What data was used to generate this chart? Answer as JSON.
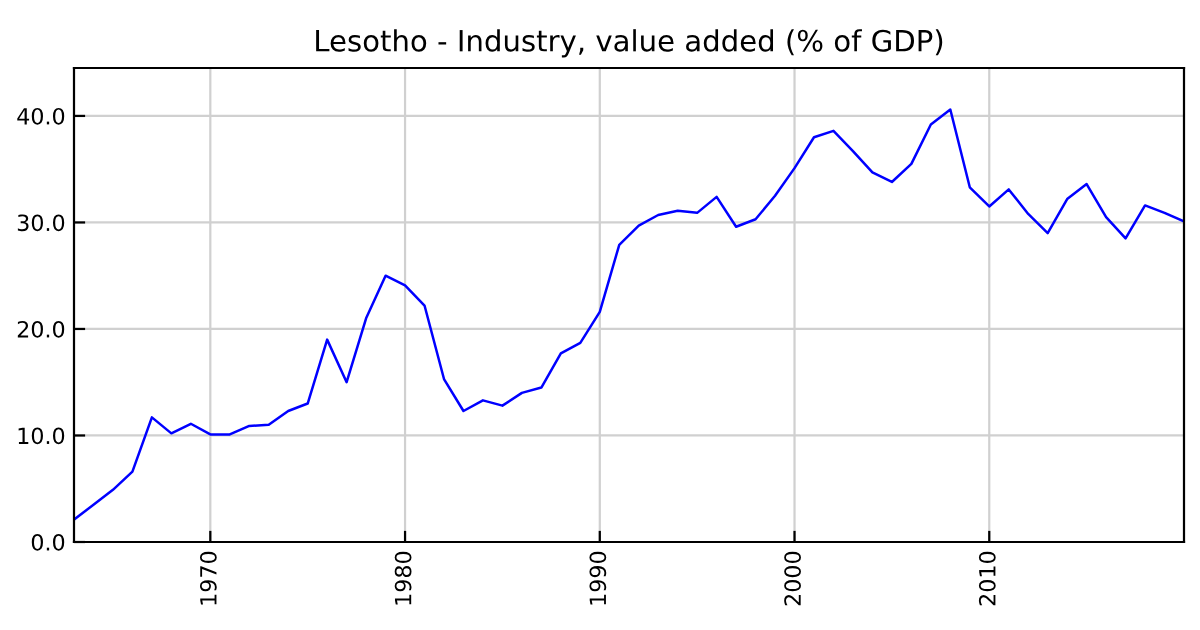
{
  "chart_data": {
    "type": "line",
    "title": "Lesotho - Industry, value added (% of GDP)",
    "x": [
      1963,
      1964,
      1965,
      1966,
      1967,
      1968,
      1969,
      1970,
      1971,
      1972,
      1973,
      1974,
      1975,
      1976,
      1977,
      1978,
      1979,
      1980,
      1981,
      1982,
      1983,
      1984,
      1985,
      1986,
      1987,
      1988,
      1989,
      1990,
      1991,
      1992,
      1993,
      1994,
      1995,
      1996,
      1997,
      1998,
      1999,
      2000,
      2001,
      2002,
      2003,
      2004,
      2005,
      2006,
      2007,
      2008,
      2009,
      2010,
      2011,
      2012,
      2013,
      2014,
      2015,
      2016,
      2017,
      2018,
      2019,
      2020
    ],
    "series": [
      {
        "color": "#0000ff",
        "values": [
          2.1,
          3.5,
          4.9,
          6.6,
          11.7,
          10.2,
          11.1,
          10.1,
          10.1,
          10.9,
          11.0,
          12.3,
          13.0,
          19.0,
          15.0,
          21.0,
          25.0,
          24.1,
          22.2,
          15.3,
          12.3,
          13.3,
          12.8,
          14.0,
          14.5,
          17.7,
          18.7,
          21.6,
          27.9,
          29.7,
          30.7,
          31.1,
          30.9,
          32.4,
          29.6,
          30.3,
          32.5,
          35.1,
          38.0,
          38.6,
          36.7,
          34.7,
          33.8,
          35.5,
          39.2,
          40.6,
          33.3,
          31.5,
          33.1,
          30.8,
          29.0,
          32.2,
          33.6,
          30.5,
          28.5,
          31.6,
          30.9,
          30.1
        ]
      }
    ],
    "xlim": [
      1963,
      2020
    ],
    "xticks": [
      1970,
      1980,
      1990,
      2000,
      2010
    ],
    "ylim": [
      0,
      44.5
    ],
    "yticks": [
      {
        "value": 0,
        "label": "0.0"
      },
      {
        "value": 10,
        "label": "10.0"
      },
      {
        "value": 20,
        "label": "20.0"
      },
      {
        "value": 30,
        "label": "30.0"
      },
      {
        "value": 40,
        "label": "40.0"
      }
    ],
    "grid": true,
    "line_style": "solid",
    "marker": "none"
  }
}
